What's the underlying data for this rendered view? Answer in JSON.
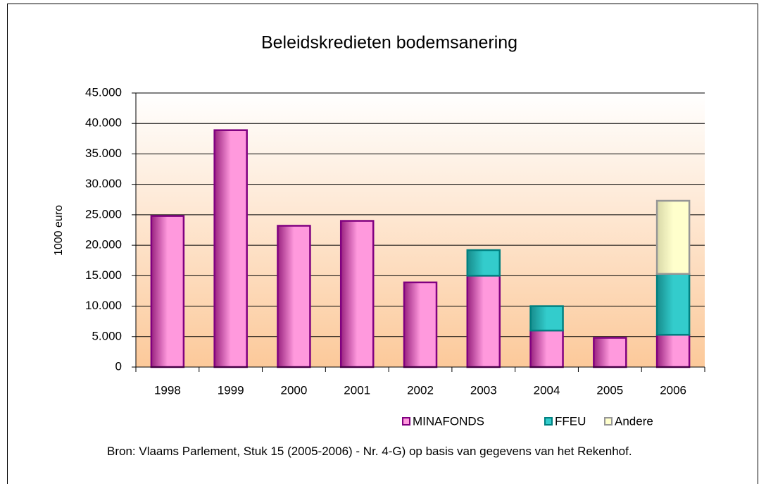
{
  "chart_data": {
    "type": "stacked-bar",
    "title": "Beleidskredieten bodemsanering",
    "ylabel": "1000 euro",
    "categories": [
      "1998",
      "1999",
      "2000",
      "2001",
      "2002",
      "2003",
      "2004",
      "2005",
      "2006"
    ],
    "series": [
      {
        "name": "MINAFONDS",
        "color": "#ff99dd",
        "values": [
          24800,
          38900,
          23200,
          24000,
          13900,
          15000,
          6000,
          4800,
          5300
        ]
      },
      {
        "name": "FFEU",
        "color": "#33cccc",
        "values": [
          null,
          null,
          null,
          null,
          null,
          4200,
          4000,
          null,
          10000
        ]
      },
      {
        "name": "Andere",
        "color": "#ffffcc",
        "values": [
          null,
          null,
          null,
          null,
          null,
          null,
          null,
          null,
          12000
        ]
      }
    ],
    "ylim": [
      0,
      45000
    ],
    "yticks": [
      0,
      {
        "value": 5000,
        "label": "5.000"
      },
      {
        "value": 10000,
        "label": "10.000"
      },
      {
        "value": 15000,
        "label": "15.000"
      },
      {
        "value": 20000,
        "label": "20.000"
      },
      {
        "value": 25000,
        "label": "25.000"
      },
      {
        "value": 30000,
        "label": "30.000"
      },
      {
        "value": 35000,
        "label": "35.000"
      },
      {
        "value": 40000,
        "label": "40.000"
      },
      {
        "value": 45000,
        "label": "45.000"
      }
    ],
    "grid": true,
    "legend": "bottom-right",
    "source": "Bron: Vlaams Parlement, Stuk 15 (2005-2006) - Nr. 4-G) op basis van gegevens van het Rekenhof."
  }
}
